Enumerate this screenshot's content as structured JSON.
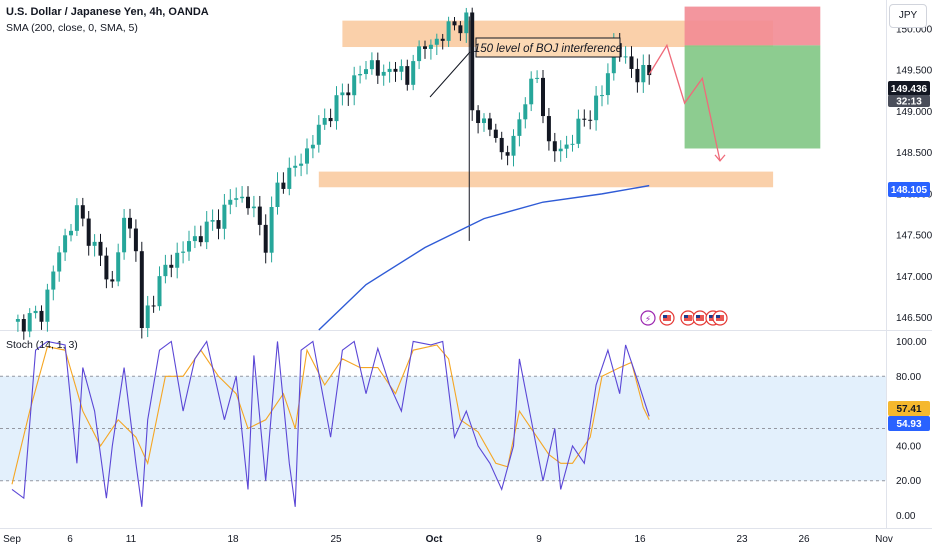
{
  "header": {
    "symbol_title": "U.S. Dollar / Japanese Yen, 4h, OANDA",
    "sma_label": "SMA (200, close, 0, SMA, 5)",
    "currency": "JPY"
  },
  "annotations": {
    "boj_label": "150 level of BOJ interference"
  },
  "price_badges": {
    "last_price": "149.436",
    "countdown": "32:13",
    "sma_value": "148.105"
  },
  "stoch_badges": {
    "k_value": "57.41",
    "d_value": "54.93"
  },
  "colors": {
    "up": "#26a69a",
    "down": "#131722",
    "sma": "#2f5bd6",
    "zone": "#f9c89b",
    "stop": "#f28b93",
    "target": "#81c784",
    "stoch_k": "#5b47d6",
    "stoch_d": "#f5a623",
    "stoch_band": "#e3f0fc",
    "projection": "#ef6b7a",
    "badge_blue": "#2962ff",
    "badge_gray": "#4a4e5a",
    "badge_black": "#131722",
    "badge_orange": "#f5b82e"
  },
  "chart_data": [
    {
      "type": "candlestick",
      "title": "U.S. Dollar / Japanese Yen, 4h, OANDA",
      "x_ticks": [
        "Sep",
        "6",
        "11",
        "18",
        "25",
        "Oct",
        "9",
        "16",
        "23",
        "26",
        "Nov"
      ],
      "y_ticks": [
        "150.000",
        "149.500",
        "149.000",
        "148.500",
        "148.000",
        "147.500",
        "147.000",
        "146.500"
      ],
      "ylim": [
        146.35,
        150.35
      ],
      "ohlc_waypoints": [
        [
          0,
          146.4
        ],
        [
          5,
          146.55
        ],
        [
          8,
          147.3
        ],
        [
          11,
          147.8
        ],
        [
          13,
          147.5
        ],
        [
          17,
          146.9
        ],
        [
          19,
          147.7
        ],
        [
          21,
          147.4
        ],
        [
          22,
          146.3
        ],
        [
          23,
          146.6
        ],
        [
          26,
          147.1
        ],
        [
          30,
          147.4
        ],
        [
          35,
          147.7
        ],
        [
          38,
          148.0
        ],
        [
          41,
          147.8
        ],
        [
          43,
          147.4
        ],
        [
          45,
          148.1
        ],
        [
          49,
          148.4
        ],
        [
          53,
          148.9
        ],
        [
          57,
          149.3
        ],
        [
          61,
          149.6
        ],
        [
          63,
          149.4
        ],
        [
          65,
          149.6
        ],
        [
          67,
          149.3
        ],
        [
          68,
          149.7
        ],
        [
          71,
          149.8
        ],
        [
          74,
          150.0
        ],
        [
          77,
          150.1
        ],
        [
          78,
          149.0
        ],
        [
          81,
          148.8
        ],
        [
          83,
          148.5
        ],
        [
          85,
          148.6
        ],
        [
          87,
          149.2
        ],
        [
          89,
          149.4
        ],
        [
          91,
          148.6
        ],
        [
          93,
          148.5
        ],
        [
          95,
          148.7
        ],
        [
          98,
          149.0
        ],
        [
          100,
          149.2
        ],
        [
          102,
          149.8
        ],
        [
          104,
          149.6
        ],
        [
          106,
          149.45
        ],
        [
          108,
          149.44
        ]
      ],
      "sma_200": [
        [
          52,
          146.35
        ],
        [
          60,
          146.9
        ],
        [
          70,
          147.35
        ],
        [
          80,
          147.7
        ],
        [
          90,
          147.9
        ],
        [
          100,
          148.0
        ],
        [
          108,
          148.1
        ]
      ],
      "zones": [
        {
          "label": "resistance",
          "from": 149.78,
          "to": 150.1
        },
        {
          "label": "support",
          "from": 148.08,
          "to": 148.27
        }
      ],
      "trade_setup": {
        "stop_top": 150.27,
        "entry": 149.8,
        "target": 148.55
      },
      "projection_path": [
        [
          108,
          149.45
        ],
        [
          111,
          149.8
        ],
        [
          114,
          149.1
        ],
        [
          117,
          149.4
        ],
        [
          120,
          148.4
        ]
      ],
      "grid": true
    },
    {
      "type": "line",
      "title": "Stoch (14, 1, 3)",
      "y_ticks": [
        "100.00",
        "80.00",
        "60.00",
        "40.00",
        "20.00",
        "0.00"
      ],
      "ylim": [
        -6,
        106
      ],
      "bands": [
        20,
        80
      ],
      "k_waypoints": [
        [
          0,
          15
        ],
        [
          2,
          10
        ],
        [
          4,
          95
        ],
        [
          6,
          100
        ],
        [
          9,
          98
        ],
        [
          11,
          30
        ],
        [
          12,
          85
        ],
        [
          14,
          60
        ],
        [
          16,
          10
        ],
        [
          17,
          40
        ],
        [
          19,
          85
        ],
        [
          21,
          30
        ],
        [
          22,
          5
        ],
        [
          23,
          55
        ],
        [
          25,
          95
        ],
        [
          27,
          100
        ],
        [
          29,
          60
        ],
        [
          31,
          90
        ],
        [
          33,
          100
        ],
        [
          36,
          55
        ],
        [
          38,
          80
        ],
        [
          40,
          15
        ],
        [
          41,
          92
        ],
        [
          43,
          20
        ],
        [
          45,
          100
        ],
        [
          47,
          30
        ],
        [
          48,
          5
        ],
        [
          49,
          95
        ],
        [
          51,
          100
        ],
        [
          54,
          45
        ],
        [
          56,
          95
        ],
        [
          58,
          100
        ],
        [
          60,
          70
        ],
        [
          62,
          96
        ],
        [
          64,
          75
        ],
        [
          66,
          60
        ],
        [
          68,
          100
        ],
        [
          71,
          98
        ],
        [
          73,
          100
        ],
        [
          75,
          45
        ],
        [
          77,
          60
        ],
        [
          79,
          40
        ],
        [
          81,
          30
        ],
        [
          83,
          15
        ],
        [
          85,
          40
        ],
        [
          86,
          90
        ],
        [
          88,
          55
        ],
        [
          90,
          20
        ],
        [
          92,
          50
        ],
        [
          93,
          15
        ],
        [
          95,
          40
        ],
        [
          97,
          30
        ],
        [
          99,
          75
        ],
        [
          101,
          95
        ],
        [
          103,
          70
        ],
        [
          104,
          98
        ],
        [
          106,
          78
        ],
        [
          108,
          57
        ]
      ],
      "d_waypoints": [
        [
          0,
          18
        ],
        [
          3,
          60
        ],
        [
          6,
          97
        ],
        [
          9,
          95
        ],
        [
          12,
          60
        ],
        [
          15,
          40
        ],
        [
          18,
          55
        ],
        [
          21,
          45
        ],
        [
          23,
          30
        ],
        [
          26,
          80
        ],
        [
          29,
          80
        ],
        [
          32,
          95
        ],
        [
          35,
          80
        ],
        [
          38,
          70
        ],
        [
          40,
          50
        ],
        [
          43,
          55
        ],
        [
          46,
          70
        ],
        [
          48,
          50
        ],
        [
          50,
          95
        ],
        [
          53,
          75
        ],
        [
          56,
          90
        ],
        [
          59,
          85
        ],
        [
          62,
          85
        ],
        [
          65,
          70
        ],
        [
          68,
          95
        ],
        [
          72,
          98
        ],
        [
          74,
          90
        ],
        [
          76,
          55
        ],
        [
          79,
          48
        ],
        [
          82,
          30
        ],
        [
          84,
          28
        ],
        [
          86,
          60
        ],
        [
          89,
          45
        ],
        [
          91,
          35
        ],
        [
          93,
          30
        ],
        [
          95,
          30
        ],
        [
          98,
          45
        ],
        [
          100,
          80
        ],
        [
          103,
          85
        ],
        [
          105,
          88
        ],
        [
          107,
          62
        ],
        [
          108,
          55
        ]
      ]
    }
  ]
}
